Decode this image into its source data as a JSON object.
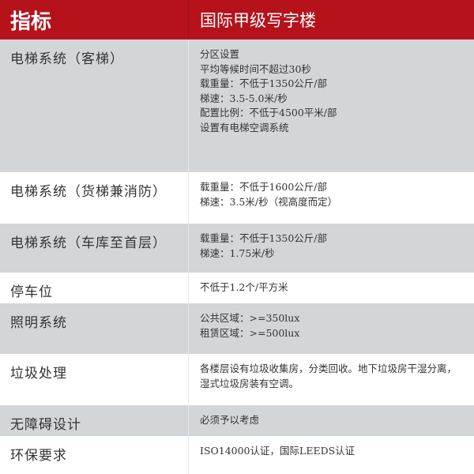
{
  "header": {
    "col1": "指标",
    "col2": "国际甲级写字楼"
  },
  "colors": {
    "header_bg": "#b5121b",
    "row_gray": "#d3d6d8"
  },
  "rows": [
    {
      "label": "电梯系统（客梯）",
      "lines": [
        "分区设置",
        "平均等候时间不超过30秒",
        "载重量：不低于1350公斤/部",
        "梯速：3.5-5.0米/秒",
        "配置比例：不低于4500平米/部",
        "设置有电梯空调系统"
      ]
    },
    {
      "label": "电梯系统（货梯兼消防）",
      "lines": [
        "载重量：不低于1600公斤/部",
        "梯速：3.5米/秒（视高度而定）"
      ]
    },
    {
      "label": "电梯系统（车库至首层）",
      "lines": [
        "载重量：不低于1350公斤/部",
        "梯速：1.75米/秒"
      ]
    },
    {
      "label": "停车位",
      "lines": [
        "不低于1.2个/平方米"
      ]
    },
    {
      "label": "照明系统",
      "lines": [
        "公共区域：>=350lux",
        "租赁区域：>=500lux"
      ]
    },
    {
      "label": "垃圾处理",
      "lines": [
        "各楼层设有垃圾收集房，分类回收。地下垃圾房干湿分离，湿式垃圾房装有空调。"
      ]
    },
    {
      "label": "无障碍设计",
      "lines": [
        "必须予以考虑"
      ]
    },
    {
      "label": "环保要求",
      "lines": [
        "ISO14000认证，国际LEEDS认证"
      ]
    }
  ]
}
